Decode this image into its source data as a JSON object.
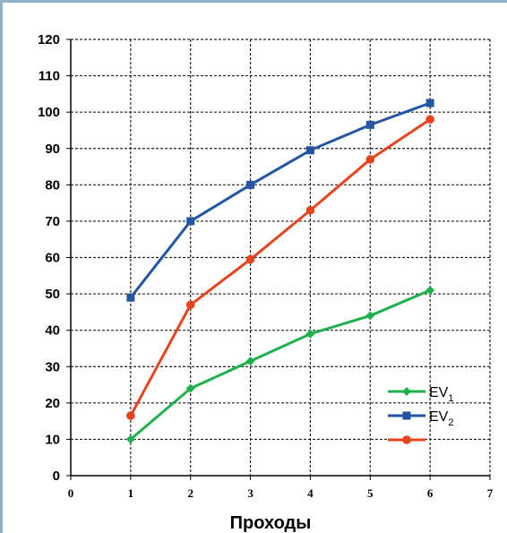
{
  "chart_data": {
    "type": "line",
    "title": "",
    "xlabel": "Проходы",
    "ylabel": "",
    "xlim": [
      0,
      7
    ],
    "ylim": [
      0,
      120
    ],
    "x_ticks": [
      "0",
      "1",
      "2",
      "3",
      "4",
      "5",
      "6",
      "7"
    ],
    "y_ticks": [
      "0",
      "10",
      "20",
      "30",
      "40",
      "50",
      "60",
      "70",
      "80",
      "90",
      "100",
      "110",
      "120"
    ],
    "grid": true,
    "legend_position": "bottom-right",
    "x": [
      1,
      2,
      3,
      4,
      5,
      6
    ],
    "series": [
      {
        "name": "EV1",
        "name_base": "EV",
        "name_sub": "1",
        "color": "#1fb04e",
        "marker": "diamond",
        "values": [
          10,
          24,
          31.5,
          39,
          44,
          51
        ]
      },
      {
        "name": "EV2",
        "name_base": "EV",
        "name_sub": "2",
        "color": "#2455a4",
        "marker": "square",
        "values": [
          49,
          70,
          80,
          89.5,
          96.5,
          102.5
        ]
      },
      {
        "name": "",
        "name_base": "",
        "name_sub": "",
        "color": "#e8431e",
        "marker": "circle",
        "values": [
          16.5,
          47,
          59.5,
          73,
          87,
          98
        ]
      }
    ]
  }
}
